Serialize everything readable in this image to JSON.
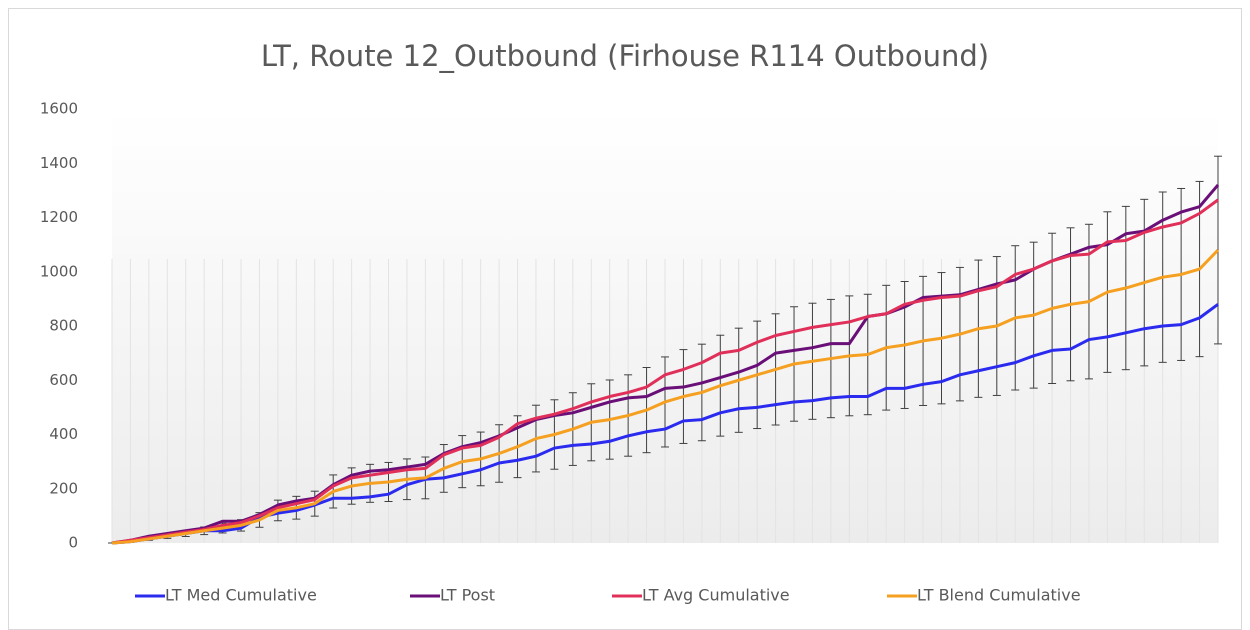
{
  "chart_data": {
    "type": "line",
    "title": "LT, Route 12_Outbound (Firhouse R114 Outbound)",
    "categories": [
      null,
      null,
      null,
      null,
      null,
      null,
      null,
      null,
      null,
      null,
      null,
      null,
      null,
      null,
      null,
      null,
      null,
      null,
      null,
      null,
      null,
      null,
      null,
      null,
      null,
      null,
      null,
      null,
      null,
      null,
      null,
      null,
      null,
      null,
      null,
      null,
      null,
      null,
      null,
      null,
      null,
      null,
      null,
      null,
      null,
      null,
      null,
      null,
      null,
      null,
      null,
      null,
      null,
      null,
      null,
      null,
      null,
      null,
      null,
      null,
      null
    ],
    "ylim": [
      0,
      1600
    ],
    "yticks": [
      0,
      200,
      400,
      600,
      800,
      1000,
      1200,
      1400,
      1600
    ],
    "grid": false,
    "legend": "bottom",
    "series": [
      {
        "name": "LT Med Cumulative",
        "color": "#2b2bf0",
        "values": [
          0,
          5,
          15,
          25,
          35,
          45,
          45,
          55,
          95,
          110,
          120,
          140,
          165,
          165,
          170,
          180,
          215,
          235,
          240,
          255,
          270,
          295,
          305,
          320,
          350,
          360,
          365,
          375,
          395,
          410,
          420,
          450,
          455,
          480,
          495,
          500,
          510,
          520,
          525,
          535,
          540,
          540,
          570,
          570,
          585,
          595,
          620,
          635,
          650,
          665,
          690,
          710,
          715,
          750,
          760,
          775,
          790,
          800,
          805,
          830,
          880
        ]
      },
      {
        "name": "LT Post",
        "color": "#6a0f78",
        "values": [
          0,
          10,
          25,
          35,
          45,
          55,
          80,
          80,
          105,
          140,
          155,
          165,
          215,
          250,
          265,
          270,
          280,
          290,
          330,
          355,
          370,
          395,
          425,
          455,
          470,
          480,
          500,
          520,
          535,
          540,
          570,
          575,
          590,
          610,
          630,
          655,
          700,
          710,
          720,
          735,
          735,
          835,
          845,
          870,
          905,
          910,
          915,
          935,
          955,
          970,
          1010,
          1040,
          1065,
          1090,
          1100,
          1140,
          1150,
          1190,
          1220,
          1240,
          1320
        ]
      },
      {
        "name": "LT Avg Cumulative",
        "color": "#e0305a",
        "values": [
          0,
          10,
          20,
          30,
          40,
          50,
          65,
          75,
          100,
          130,
          145,
          160,
          210,
          240,
          250,
          260,
          270,
          275,
          325,
          350,
          360,
          390,
          440,
          460,
          475,
          495,
          520,
          540,
          555,
          575,
          620,
          640,
          665,
          700,
          710,
          740,
          765,
          780,
          795,
          805,
          815,
          835,
          845,
          880,
          895,
          905,
          910,
          930,
          945,
          990,
          1010,
          1040,
          1060,
          1065,
          1110,
          1115,
          1145,
          1165,
          1180,
          1215,
          1265
        ]
      },
      {
        "name": "LT Blend Cumulative",
        "color": "#f5a020",
        "values": [
          0,
          5,
          15,
          25,
          35,
          45,
          55,
          65,
          85,
          120,
          130,
          145,
          190,
          210,
          220,
          225,
          235,
          240,
          275,
          300,
          310,
          330,
          355,
          385,
          400,
          420,
          445,
          455,
          470,
          490,
          520,
          540,
          555,
          580,
          600,
          620,
          640,
          660,
          670,
          680,
          690,
          695,
          720,
          730,
          745,
          755,
          770,
          790,
          800,
          830,
          840,
          865,
          880,
          890,
          925,
          940,
          960,
          980,
          990,
          1010,
          1080
        ],
        "errors": [
          0,
          2,
          5,
          8,
          11,
          14,
          18,
          21,
          27,
          38,
          42,
          46,
          61,
          67,
          70,
          72,
          75,
          77,
          88,
          96,
          99,
          106,
          114,
          123,
          128,
          134,
          142,
          146,
          150,
          157,
          166,
          173,
          178,
          186,
          192,
          198,
          205,
          211,
          214,
          218,
          221,
          222,
          230,
          234,
          238,
          242,
          246,
          253,
          256,
          266,
          269,
          277,
          282,
          285,
          296,
          301,
          307,
          314,
          317,
          323,
          346
        ],
        "error_color": "#404040"
      }
    ]
  }
}
